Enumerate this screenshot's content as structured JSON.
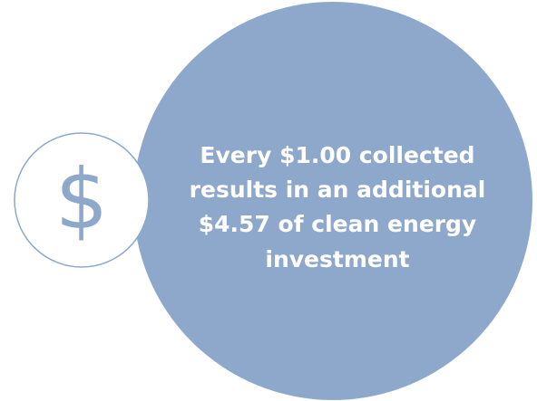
{
  "symbol": "$",
  "message": {
    "lines": [
      "Every $1.00 collected",
      "results in an additional",
      "$4.57 of clean energy",
      "investment"
    ]
  }
}
